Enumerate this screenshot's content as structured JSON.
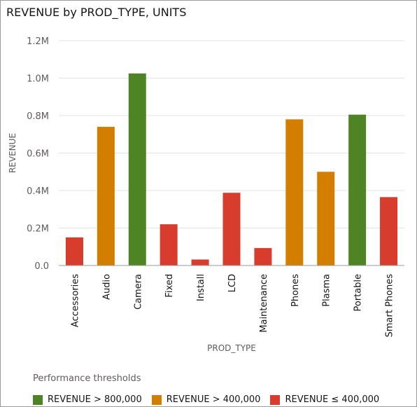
{
  "chart_data": {
    "type": "bar",
    "title": "REVENUE by PROD_TYPE, UNITS",
    "xlabel": "PROD_TYPE",
    "ylabel": "REVENUE",
    "ylim": [
      0,
      1200000
    ],
    "yticks": [
      0,
      200000,
      400000,
      600000,
      800000,
      1000000,
      1200000
    ],
    "ytick_labels": [
      "0.0",
      "0.2M",
      "0.4M",
      "0.6M",
      "0.8M",
      "1.0M",
      "1.2M"
    ],
    "grid": true,
    "categories": [
      "Accessories",
      "Audio",
      "Camera",
      "Fixed",
      "Install",
      "LCD",
      "Maintenance",
      "Phones",
      "Plasma",
      "Portable",
      "Smart Phones"
    ],
    "values": [
      150000,
      740000,
      1025000,
      220000,
      32000,
      388000,
      93000,
      780000,
      500000,
      805000,
      365000
    ],
    "legend": {
      "title": "Performance thresholds",
      "placement": "bottom",
      "items": [
        {
          "label": "REVENUE > 800,000",
          "color": "#4e8424"
        },
        {
          "label": "REVENUE > 400,000",
          "color": "#d47e00"
        },
        {
          "label": "REVENUE ≤ 400,000",
          "color": "#d73c2c"
        }
      ]
    }
  }
}
